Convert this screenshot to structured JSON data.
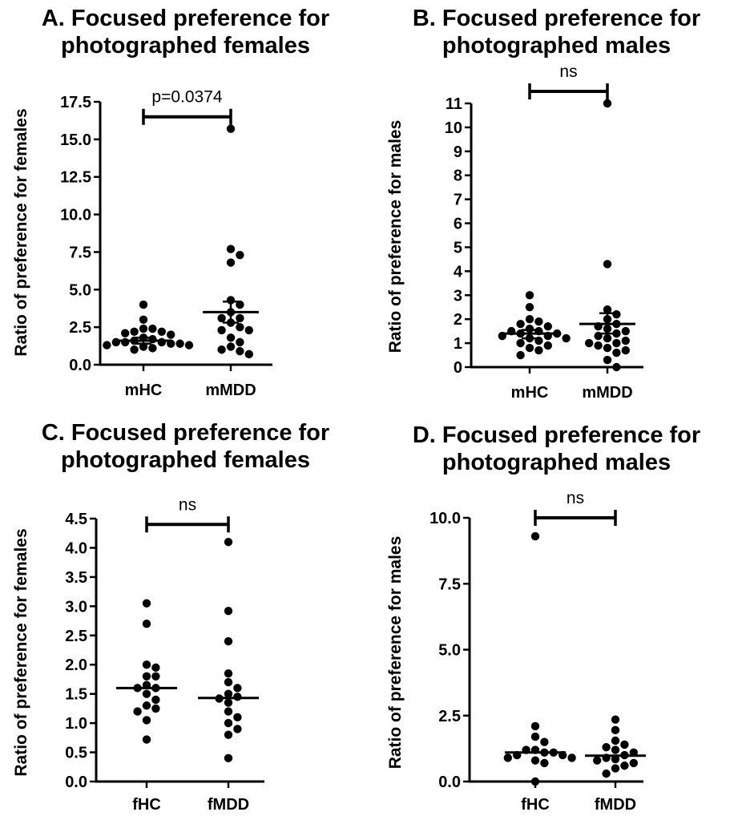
{
  "chart_data": [
    {
      "id": "A",
      "type": "scatter",
      "title_line1": "A. Focused preference for",
      "title_line2": "photographed females",
      "ylabel": "Ratio of preference for females",
      "categories": [
        "mHC",
        "mMDD"
      ],
      "ylim": [
        0,
        17.5
      ],
      "yticks": [
        0.0,
        2.5,
        5.0,
        7.5,
        10.0,
        12.5,
        15.0,
        17.5
      ],
      "ytick_labels": [
        "0.0",
        "2.5",
        "5.0",
        "7.5",
        "10.0",
        "12.5",
        "15.0",
        "17.5"
      ],
      "series": [
        {
          "category": "mHC",
          "mean": 1.6,
          "err_low": 1.4,
          "err_high": 1.8,
          "values": [
            4.0,
            3.0,
            2.4,
            2.4,
            2.2,
            2.2,
            2.1,
            2.0,
            1.8,
            1.7,
            1.6,
            1.5,
            1.5,
            1.5,
            1.4,
            1.4,
            1.3,
            1.3,
            1.2,
            1.1,
            1.0
          ]
        },
        {
          "category": "mMDD",
          "mean": 3.5,
          "err_low": 2.8,
          "err_high": 4.2,
          "values": [
            15.7,
            7.7,
            7.3,
            6.8,
            4.3,
            4.0,
            3.5,
            3.1,
            3.1,
            2.8,
            2.5,
            2.3,
            2.3,
            1.8,
            1.5,
            1.2,
            1.0,
            0.9,
            0.7
          ]
        }
      ],
      "significance": {
        "label": "p=0.0374",
        "y": 16.5
      }
    },
    {
      "id": "B",
      "type": "scatter",
      "title_line1": "B. Focused preference for",
      "title_line2": "photographed males",
      "ylabel": "Ratio of preference for males",
      "categories": [
        "mHC",
        "mMDD"
      ],
      "ylim": [
        0,
        11
      ],
      "yticks": [
        0,
        1,
        2,
        3,
        4,
        5,
        6,
        7,
        8,
        9,
        10,
        11
      ],
      "ytick_labels": [
        "0",
        "1",
        "2",
        "3",
        "4",
        "5",
        "6",
        "7",
        "8",
        "9",
        "10",
        "11"
      ],
      "series": [
        {
          "category": "mHC",
          "mean": 1.4,
          "err_low": 1.2,
          "err_high": 1.55,
          "values": [
            3.0,
            2.5,
            2.0,
            1.9,
            1.8,
            1.7,
            1.6,
            1.5,
            1.5,
            1.4,
            1.4,
            1.3,
            1.3,
            1.2,
            1.2,
            1.1,
            1.0,
            0.9,
            0.8,
            0.7,
            0.5
          ]
        },
        {
          "category": "mMDD",
          "mean": 1.8,
          "err_low": 1.4,
          "err_high": 2.25,
          "values": [
            11.0,
            4.3,
            2.4,
            2.2,
            2.0,
            1.8,
            1.7,
            1.6,
            1.5,
            1.4,
            1.3,
            1.2,
            1.1,
            1.0,
            1.0,
            0.9,
            0.8,
            0.7,
            0.6,
            0.3,
            0.0
          ]
        }
      ],
      "significance": {
        "label": "ns",
        "y": 11.5
      }
    },
    {
      "id": "C",
      "type": "scatter",
      "title_line1": "C. Focused preference for",
      "title_line2": "photographed females",
      "ylabel": "Ratio of preference for females",
      "categories": [
        "fHC",
        "fMDD"
      ],
      "ylim": [
        0,
        4.5
      ],
      "yticks": [
        0.0,
        0.5,
        1.0,
        1.5,
        2.0,
        2.5,
        3.0,
        3.5,
        4.0,
        4.5
      ],
      "ytick_labels": [
        "0.0",
        "0.5",
        "1.0",
        "1.5",
        "2.0",
        "2.5",
        "3.0",
        "3.5",
        "4.0",
        "4.5"
      ],
      "series": [
        {
          "category": "fHC",
          "mean": 1.6,
          "values": [
            3.05,
            2.7,
            2.0,
            1.95,
            1.8,
            1.8,
            1.65,
            1.6,
            1.6,
            1.5,
            1.4,
            1.3,
            1.25,
            1.2,
            1.05,
            0.72
          ]
        },
        {
          "category": "fMDD",
          "mean": 1.43,
          "values": [
            4.1,
            2.92,
            2.4,
            1.85,
            1.7,
            1.6,
            1.5,
            1.45,
            1.42,
            1.35,
            1.2,
            1.1,
            1.0,
            0.9,
            0.8,
            0.4
          ]
        }
      ],
      "significance": {
        "label": "ns",
        "y": 4.4
      }
    },
    {
      "id": "D",
      "type": "scatter",
      "title_line1": "D. Focused preference for",
      "title_line2": "photographed males",
      "ylabel": "Ratio of preference for males",
      "categories": [
        "fHC",
        "fMDD"
      ],
      "ylim": [
        0,
        10
      ],
      "yticks": [
        0.0,
        2.5,
        5.0,
        7.5,
        10.0
      ],
      "ytick_labels": [
        "0.0",
        "2.5",
        "5.0",
        "7.5",
        "10.0"
      ],
      "series": [
        {
          "category": "fHC",
          "mean": 1.1,
          "values": [
            9.3,
            2.1,
            1.7,
            1.5,
            1.2,
            1.2,
            1.1,
            1.1,
            1.0,
            1.0,
            0.9,
            0.9,
            0.8,
            0.7,
            0.0
          ]
        },
        {
          "category": "fMDD",
          "mean": 0.98,
          "values": [
            2.35,
            1.95,
            1.55,
            1.4,
            1.3,
            1.2,
            1.1,
            1.0,
            0.9,
            0.85,
            0.8,
            0.7,
            0.6,
            0.5,
            0.3
          ]
        }
      ],
      "significance": {
        "label": "ns",
        "y": 10.0
      }
    }
  ]
}
